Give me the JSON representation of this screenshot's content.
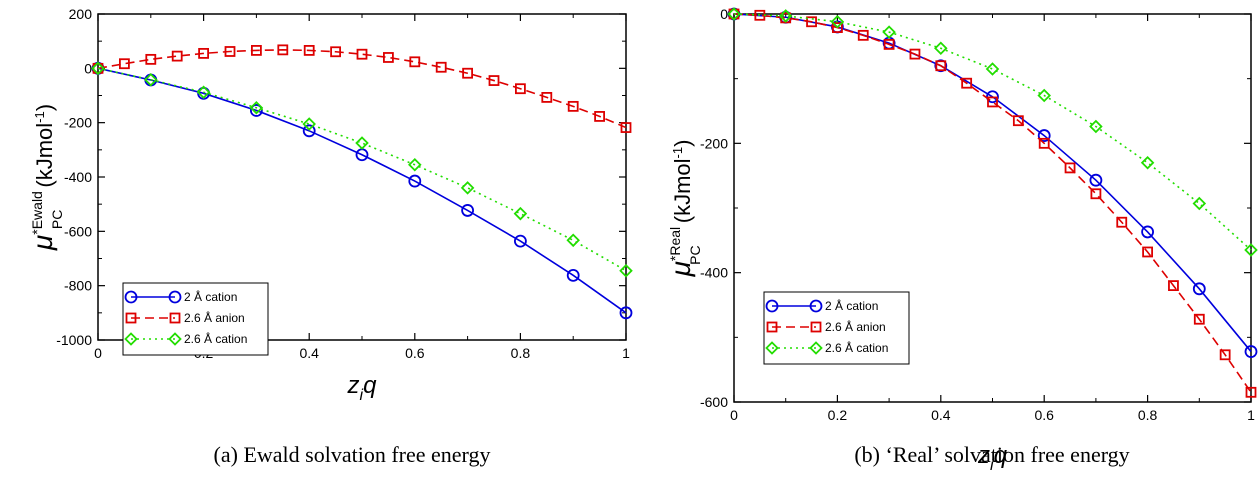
{
  "chart_data": [
    {
      "type": "line",
      "panel": "a",
      "caption": "(a) Ewald solvation free energy",
      "xlabel": {
        "z": "z",
        "sub": "i",
        "q": "q"
      },
      "ylabel": {
        "pre": "μ",
        "sup": "*Ewald",
        "sub": "PC",
        "unit": " (kJmol",
        "unit_sup": "-1",
        "close": ")"
      },
      "xlim": [
        0,
        1
      ],
      "ylim": [
        -1000,
        200
      ],
      "xticks": [
        0,
        0.2,
        0.4,
        0.6,
        0.8,
        1
      ],
      "xtick_labels": [
        "0",
        "0.2",
        "0.4",
        "0.6",
        "0.8",
        "1"
      ],
      "yticks": [
        -1000,
        -800,
        -600,
        -400,
        -200,
        0,
        200
      ],
      "ytick_labels": [
        "-1000",
        "-800",
        "-600",
        "-400",
        "-200",
        "0",
        "200"
      ],
      "legend_position": "bottom-left",
      "series": [
        {
          "name": "2 Å cation",
          "color": "#0000dd",
          "marker": "circle",
          "dash": "solid",
          "x": [
            0,
            0.1,
            0.2,
            0.3,
            0.4,
            0.5,
            0.6,
            0.7,
            0.8,
            0.9,
            1.0
          ],
          "y": [
            0,
            -43,
            -92,
            -155,
            -230,
            -318,
            -415,
            -523,
            -636,
            -762,
            -900
          ]
        },
        {
          "name": "2.6 Å anion",
          "color": "#dd0000",
          "marker": "square",
          "dash": "dashed",
          "x": [
            0,
            0.05,
            0.1,
            0.15,
            0.2,
            0.25,
            0.3,
            0.35,
            0.4,
            0.45,
            0.5,
            0.55,
            0.6,
            0.65,
            0.7,
            0.75,
            0.8,
            0.85,
            0.9,
            0.95,
            1.0
          ],
          "y": [
            0,
            17,
            33,
            45,
            55,
            62,
            66,
            68,
            66,
            61,
            52,
            40,
            24,
            4,
            -18,
            -45,
            -75,
            -107,
            -140,
            -177,
            -218
          ]
        },
        {
          "name": "2.6 Å cation",
          "color": "#22dd00",
          "marker": "diamond",
          "dash": "dotted",
          "x": [
            0,
            0.1,
            0.2,
            0.3,
            0.4,
            0.5,
            0.6,
            0.7,
            0.8,
            0.9,
            1.0
          ],
          "y": [
            0,
            -42,
            -88,
            -145,
            -205,
            -275,
            -355,
            -440,
            -535,
            -633,
            -745
          ]
        }
      ]
    },
    {
      "type": "line",
      "panel": "b",
      "caption": "(b) ‘Real’ solvation free energy",
      "xlabel": {
        "z": "z",
        "sub": "i",
        "q": "q"
      },
      "ylabel": {
        "pre": "μ",
        "sup": "*Real",
        "sub": "PC",
        "unit": " (kJmol",
        "unit_sup": "-1",
        "close": ")"
      },
      "xlim": [
        0,
        1
      ],
      "ylim": [
        -600,
        0
      ],
      "xticks": [
        0,
        0.2,
        0.4,
        0.6,
        0.8,
        1
      ],
      "xtick_labels": [
        "0",
        "0.2",
        "0.4",
        "0.6",
        "0.8",
        "1"
      ],
      "yticks": [
        -600,
        -400,
        -200,
        0
      ],
      "ytick_labels": [
        "-600",
        "-400",
        "-200",
        "0"
      ],
      "legend_position": "bottom-left",
      "series": [
        {
          "name": "2 Å cation",
          "color": "#0000dd",
          "marker": "circle",
          "dash": "solid",
          "x": [
            0,
            0.1,
            0.2,
            0.3,
            0.4,
            0.5,
            0.6,
            0.7,
            0.8,
            0.9,
            1.0
          ],
          "y": [
            0,
            -5,
            -20,
            -45,
            -80,
            -128,
            -188,
            -257,
            -337,
            -425,
            -522
          ]
        },
        {
          "name": "2.6 Å anion",
          "color": "#dd0000",
          "marker": "square",
          "dash": "dashed",
          "x": [
            0,
            0.05,
            0.1,
            0.15,
            0.2,
            0.25,
            0.3,
            0.35,
            0.4,
            0.45,
            0.5,
            0.55,
            0.6,
            0.65,
            0.7,
            0.75,
            0.8,
            0.85,
            0.9,
            0.95,
            1.0
          ],
          "y": [
            0,
            -2,
            -6,
            -12,
            -21,
            -33,
            -47,
            -62,
            -80,
            -107,
            -136,
            -165,
            -200,
            -238,
            -278,
            -322,
            -368,
            -420,
            -472,
            -527,
            -585
          ]
        },
        {
          "name": "2.6 Å cation",
          "color": "#22dd00",
          "marker": "diamond",
          "dash": "dotted",
          "x": [
            0,
            0.1,
            0.2,
            0.3,
            0.4,
            0.5,
            0.6,
            0.7,
            0.8,
            0.9,
            1.0
          ],
          "y": [
            0,
            -3,
            -12,
            -28,
            -53,
            -85,
            -126,
            -174,
            -230,
            -293,
            -365
          ]
        }
      ]
    }
  ]
}
